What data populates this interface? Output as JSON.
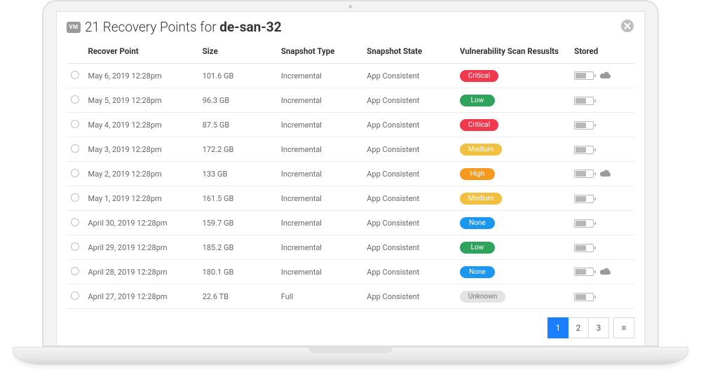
{
  "header": {
    "vm_badge": "VM",
    "title_prefix": "21 Recovery Points for ",
    "title_target": "de-san-32"
  },
  "columns": {
    "recover_point": "Recover Point",
    "size": "Size",
    "snapshot_type": "Snapshot Type",
    "snapshot_state": "Snapshot State",
    "vuln": "Vulnerability Scan Resuslts",
    "stored": "Stored"
  },
  "colors": {
    "critical": "#f0394f",
    "low": "#2fa35b",
    "medium": "#f1c040",
    "high": "#f59a1e",
    "none": "#1b97f0",
    "unknown_bg": "#e3e3e3",
    "unknown_text": "#777777",
    "page_active": "#1b7fff",
    "border": "#ececec"
  },
  "rows": [
    {
      "date": "May 6, 2019  12:28pm",
      "size": "101.6 GB",
      "type": "Incremental",
      "state": "App Consistent",
      "vuln": "Critical",
      "vuln_key": "critical",
      "battery": 60,
      "cloud": true
    },
    {
      "date": "May 5, 2019  12:28pm",
      "size": "96.3 GB",
      "type": "Incremental",
      "state": "App Consistent",
      "vuln": "Low",
      "vuln_key": "low",
      "battery": 60,
      "cloud": false
    },
    {
      "date": "May 4, 2019  12:28pm",
      "size": "87.5 GB",
      "type": "Incremental",
      "state": "App Consistent",
      "vuln": "Critical",
      "vuln_key": "critical",
      "battery": 60,
      "cloud": false
    },
    {
      "date": "May 3, 2019  12:28pm",
      "size": "172.2 GB",
      "type": "Incremental",
      "state": "App Consistent",
      "vuln": "Medium",
      "vuln_key": "medium",
      "battery": 60,
      "cloud": false
    },
    {
      "date": "May 2, 2019  12:28pm",
      "size": "133 GB",
      "type": "Incremental",
      "state": "App Consistent",
      "vuln": "High",
      "vuln_key": "high",
      "battery": 60,
      "cloud": true
    },
    {
      "date": "May 1, 2019  12:28pm",
      "size": "161.5 GB",
      "type": "Incremental",
      "state": "App Consistent",
      "vuln": "Medium",
      "vuln_key": "medium",
      "battery": 60,
      "cloud": false
    },
    {
      "date": "April 30, 2019  12:28pm",
      "size": "159.7 GB",
      "type": "Incremental",
      "state": "App Consistent",
      "vuln": "None",
      "vuln_key": "none",
      "battery": 60,
      "cloud": false
    },
    {
      "date": "April 29, 2019  12:28pm",
      "size": "185.2 GB",
      "type": "Incremental",
      "state": "App Consistent",
      "vuln": "Low",
      "vuln_key": "low",
      "battery": 60,
      "cloud": false
    },
    {
      "date": "April 28, 2019  12:28pm",
      "size": "180.1 GB",
      "type": "Incremental",
      "state": "App Consistent",
      "vuln": "None",
      "vuln_key": "none",
      "battery": 60,
      "cloud": true
    },
    {
      "date": "April 27, 2019  12:28pm",
      "size": "22.6 TB",
      "type": "Full",
      "state": "App Consistent",
      "vuln": "Unknown",
      "vuln_key": "unknown",
      "battery": 60,
      "cloud": false
    }
  ],
  "pagination": {
    "pages": [
      "1",
      "2",
      "3"
    ],
    "active": 0,
    "menu_glyph": "≡"
  }
}
